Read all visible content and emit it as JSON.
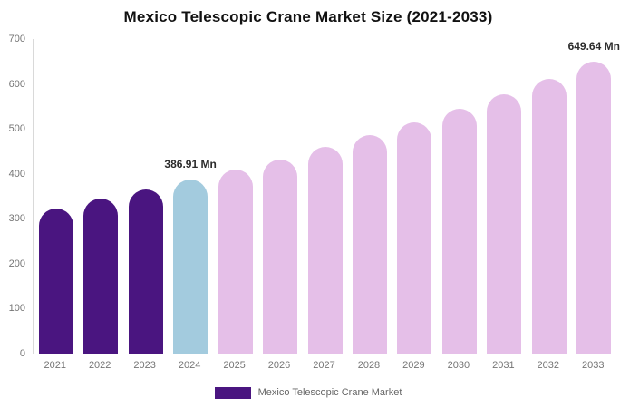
{
  "chart_data": {
    "type": "bar",
    "title": "Mexico Telescopic Crane Market Size (2021-2033)",
    "categories": [
      "2021",
      "2022",
      "2023",
      "2024",
      "2025",
      "2026",
      "2027",
      "2028",
      "2029",
      "2030",
      "2031",
      "2032",
      "2033"
    ],
    "values": [
      322,
      344,
      365,
      386.91,
      409,
      432,
      459,
      486,
      515,
      545,
      577,
      611,
      649.64
    ],
    "point_labels": [
      "",
      "",
      "",
      "386.91 Mn",
      "",
      "",
      "",
      "",
      "",
      "",
      "",
      "",
      "649.64 Mn"
    ],
    "bar_colors": [
      "#4a1580",
      "#4a1580",
      "#4a1580",
      "#a3cbde",
      "#e5bfe8",
      "#e5bfe8",
      "#e5bfe8",
      "#e5bfe8",
      "#e5bfe8",
      "#e5bfe8",
      "#e5bfe8",
      "#e5bfe8",
      "#e5bfe8"
    ],
    "xlabel": "",
    "ylabel": "",
    "ylim": [
      0,
      700
    ],
    "yticks": [
      0,
      100,
      200,
      300,
      400,
      500,
      600,
      700
    ],
    "grid": false,
    "legend": {
      "position": "bottom",
      "label": "Mexico Telescopic Crane Market",
      "swatch_color": "#4a1580"
    },
    "colors": {
      "historical_bar": "#4a1580",
      "base_year_bar": "#a3cbde",
      "forecast_bar": "#e5bfe8",
      "axis_line": "#d9d9d9",
      "tick_text": "#757575",
      "data_label_text": "#2b2b2b",
      "title_text": "#111111",
      "background": "#ffffff"
    }
  }
}
